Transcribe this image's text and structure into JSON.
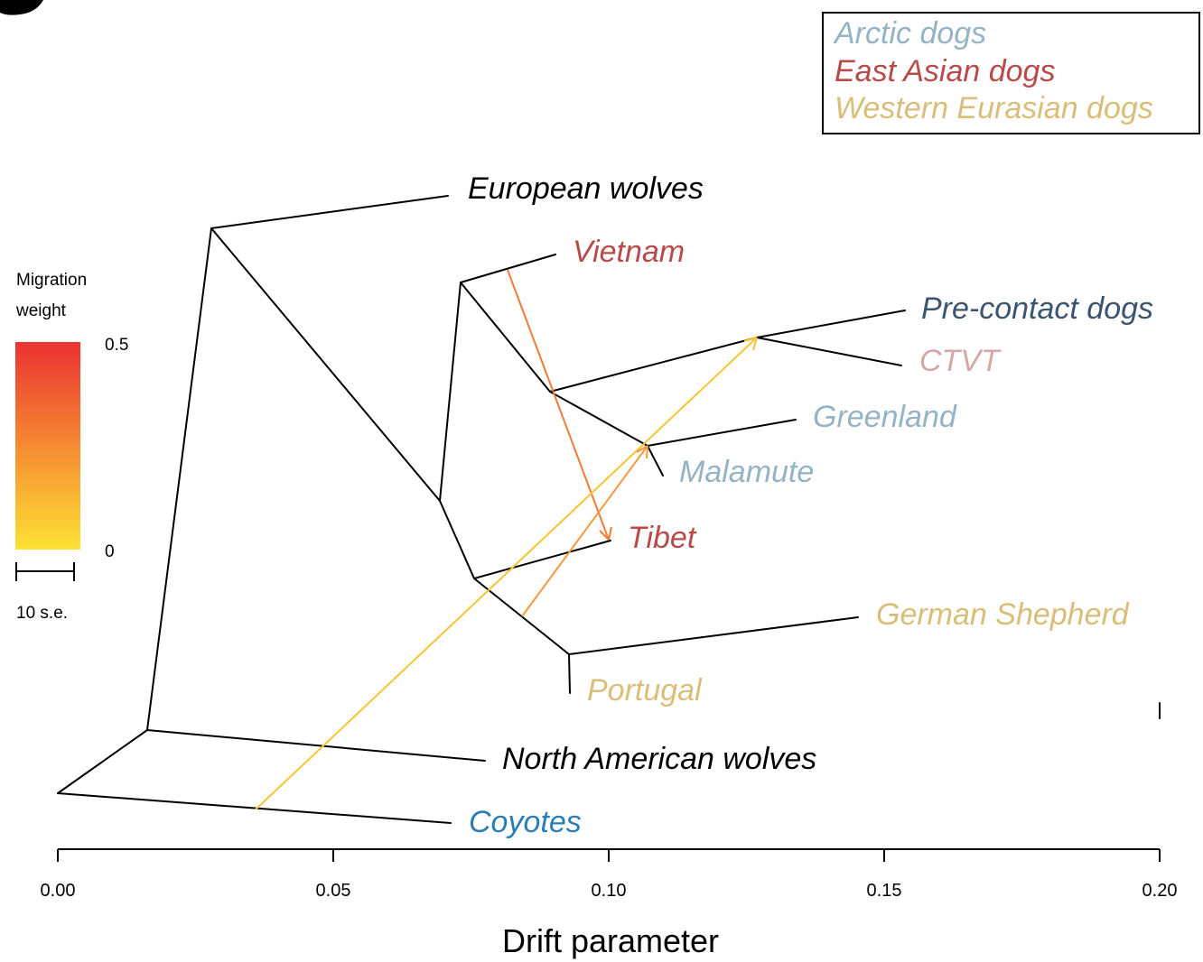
{
  "figure": {
    "xlabel": "Drift parameter",
    "x_ticks": [
      {
        "value": 0.0,
        "label": "0.00"
      },
      {
        "value": 0.05,
        "label": "0.05"
      },
      {
        "value": 0.1,
        "label": "0.10"
      },
      {
        "value": 0.15,
        "label": "0.15"
      },
      {
        "value": 0.2,
        "label": "0.20"
      }
    ],
    "xlim": [
      0,
      0.2
    ]
  },
  "legend": {
    "items": [
      {
        "label": "Arctic dogs",
        "color": "#94b3c4"
      },
      {
        "label": "East Asian dogs",
        "color": "#b84a4a"
      },
      {
        "label": "Western Eurasian dogs",
        "color": "#d9be7a"
      }
    ]
  },
  "migration_scale": {
    "title_line1": "Migration",
    "title_line2": "weight",
    "max_label": "0.5",
    "min_label": "0",
    "color_low": "#fde234",
    "color_mid": "#f58a32",
    "color_high": "#eb3232",
    "se_label": "10 s.e."
  },
  "tips": [
    {
      "label": "European wolves",
      "color": "#000000"
    },
    {
      "label": "Vietnam",
      "color": "#b84a4a"
    },
    {
      "label": "Pre-contact dogs",
      "color": "#3d5470"
    },
    {
      "label": "CTVT",
      "color": "#d4a7a9"
    },
    {
      "label": "Greenland",
      "color": "#94b3c4"
    },
    {
      "label": "Malamute",
      "color": "#94b3c4"
    },
    {
      "label": "Tibet",
      "color": "#b84a4a"
    },
    {
      "label": "German Shepherd",
      "color": "#d9be7a"
    },
    {
      "label": "Portugal",
      "color": "#d9be7a"
    },
    {
      "label": "North American wolves",
      "color": "#000000"
    },
    {
      "label": "Coyotes",
      "color": "#2a7eb5"
    }
  ],
  "migrations": [
    {
      "from": "Vietnam branch",
      "to": "Tibet",
      "color": "#f07a36"
    },
    {
      "from": "Coyotes branch",
      "to": "Pre-contact dogs / CTVT ancestor",
      "color": "#f7c434"
    },
    {
      "from": "German Shepherd / Portugal ancestor branch",
      "to": "Greenland / Malamute ancestor",
      "color": "#f49a3a"
    }
  ]
}
